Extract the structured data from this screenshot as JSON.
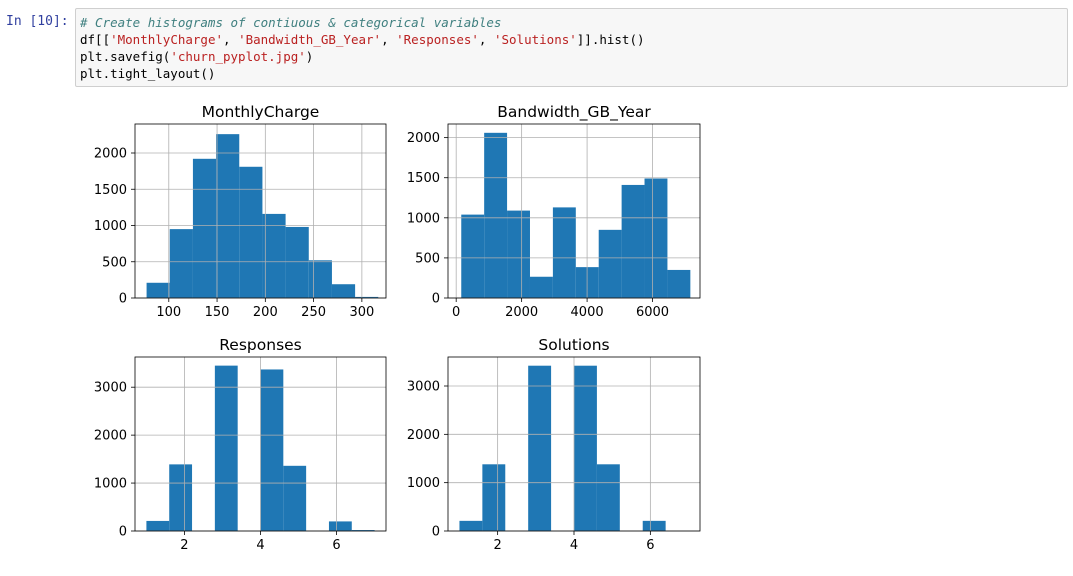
{
  "cell": {
    "prompt": "In [10]:",
    "code": {
      "comment": "# Create histograms of contiuous & categorical variables",
      "line2": [
        "df[[",
        "'MonthlyCharge'",
        ", ",
        "'Bandwidth_GB_Year'",
        ", ",
        "'Responses'",
        ", ",
        "'Solutions'",
        "]].hist()"
      ],
      "line3": [
        "plt.savefig(",
        "'churn_pyplot.jpg'",
        ")"
      ],
      "line4": "plt.tight_layout()"
    }
  },
  "colors": {
    "bar": "#1f77b4",
    "grid": "#b0b0b0",
    "prompt": "#303F9F",
    "comment": "#408080",
    "string": "#BA2121"
  },
  "chart_data": [
    {
      "type": "bar",
      "title": "MonthlyCharge",
      "xlim": [
        65,
        325
      ],
      "ylim": [
        0,
        2400
      ],
      "xticks": [
        100,
        150,
        200,
        250,
        300
      ],
      "yticks": [
        0,
        500,
        1000,
        1500,
        2000
      ],
      "bin_edges": [
        77,
        101,
        125,
        149,
        173,
        197,
        221,
        245,
        269,
        293,
        317
      ],
      "values": [
        210,
        950,
        1920,
        2260,
        1810,
        1160,
        980,
        520,
        190,
        15
      ],
      "grid": true
    },
    {
      "type": "bar",
      "title": "Bandwidth_GB_Year",
      "xlim": [
        -250,
        7450
      ],
      "ylim": [
        0,
        2170
      ],
      "xticks": [
        0,
        2000,
        4000,
        6000
      ],
      "yticks": [
        0,
        500,
        1000,
        1500,
        2000
      ],
      "bin_edges": [
        155,
        855,
        1555,
        2255,
        2955,
        3655,
        4355,
        5055,
        5755,
        6455,
        7155
      ],
      "values": [
        1040,
        2060,
        1090,
        265,
        1130,
        385,
        850,
        1410,
        1490,
        350
      ],
      "grid": true
    },
    {
      "type": "bar",
      "title": "Responses",
      "xlim": [
        0.7,
        7.3
      ],
      "ylim": [
        0,
        3630
      ],
      "xticks": [
        2,
        4,
        6
      ],
      "yticks": [
        0,
        1000,
        2000,
        3000
      ],
      "bin_edges": [
        1,
        1.6,
        2.2,
        2.8,
        3.4,
        4,
        4.6,
        5.2,
        5.8,
        6.4,
        7
      ],
      "values": [
        210,
        1390,
        0,
        3450,
        0,
        3370,
        1360,
        0,
        200,
        20
      ],
      "grid": true
    },
    {
      "type": "bar",
      "title": "Solutions",
      "xlim": [
        0.7,
        7.3
      ],
      "ylim": [
        0,
        3600
      ],
      "xticks": [
        2,
        4,
        6
      ],
      "yticks": [
        0,
        1000,
        2000,
        3000
      ],
      "bin_edges": [
        1,
        1.6,
        2.2,
        2.8,
        3.4,
        4,
        4.6,
        5.2,
        5.8,
        6.4,
        7
      ],
      "values": [
        210,
        1380,
        0,
        3420,
        0,
        3420,
        1380,
        0,
        210,
        0
      ],
      "grid": true
    }
  ]
}
